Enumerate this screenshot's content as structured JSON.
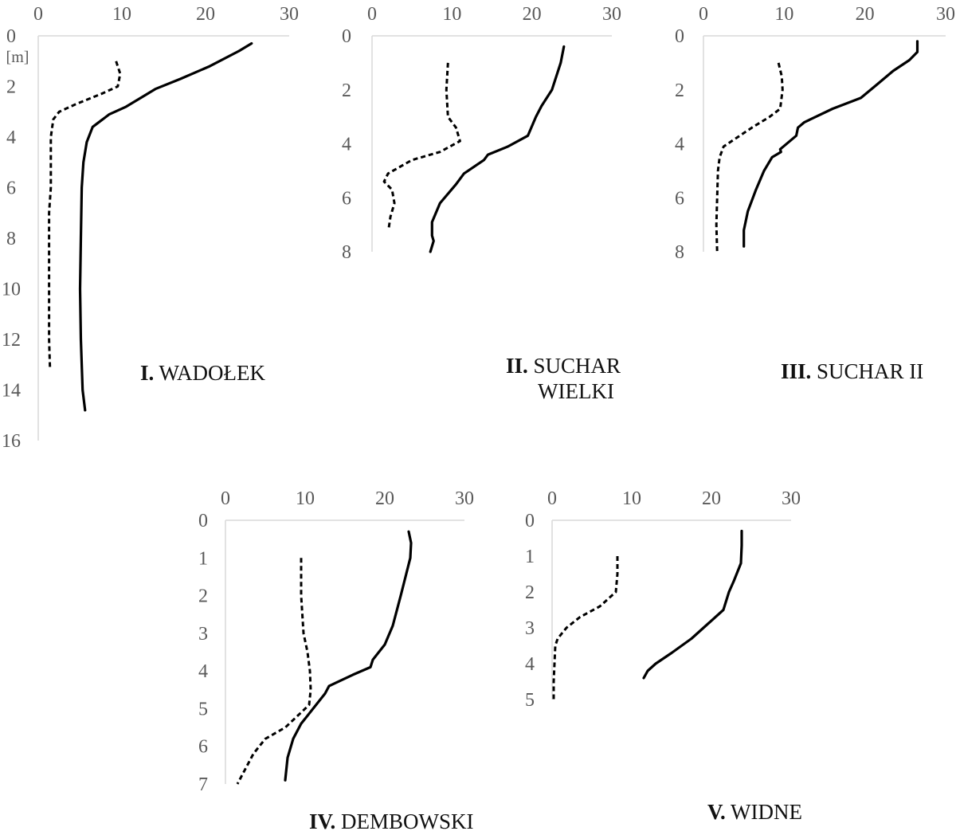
{
  "chart_data": [
    {
      "type": "line",
      "title_num": "I.",
      "title_name": [
        "WADOŁEK"
      ],
      "unit_label": "[m]",
      "xlim": [
        0,
        30
      ],
      "ylim": [
        0,
        16
      ],
      "y_inverted": true,
      "x_ticks": [
        "0",
        "10",
        "20",
        "30"
      ],
      "y_ticks": [
        "0",
        "2",
        "4",
        "6",
        "8",
        "10",
        "12",
        "14",
        "16"
      ],
      "grid": false,
      "series": [
        {
          "style": "solid",
          "points": [
            [
              25.5,
              0.3
            ],
            [
              24,
              0.6
            ],
            [
              20.5,
              1.2
            ],
            [
              17,
              1.7
            ],
            [
              14,
              2.1
            ],
            [
              12.5,
              2.4
            ],
            [
              10.5,
              2.8
            ],
            [
              8.5,
              3.1
            ],
            [
              6.5,
              3.6
            ],
            [
              5.8,
              4.2
            ],
            [
              5.4,
              5
            ],
            [
              5.2,
              6
            ],
            [
              5.1,
              8
            ],
            [
              5,
              10
            ],
            [
              5.1,
              12
            ],
            [
              5.3,
              14
            ],
            [
              5.6,
              14.8
            ]
          ]
        },
        {
          "style": "dashed",
          "points": [
            [
              9.3,
              1
            ],
            [
              9.8,
              1.5
            ],
            [
              9.5,
              2
            ],
            [
              7.5,
              2.3
            ],
            [
              4.5,
              2.7
            ],
            [
              2.5,
              3
            ],
            [
              1.8,
              3.3
            ],
            [
              1.5,
              4
            ],
            [
              1.5,
              6
            ],
            [
              1.3,
              7
            ],
            [
              1.3,
              8
            ],
            [
              1.3,
              10
            ],
            [
              1.3,
              12
            ],
            [
              1.4,
              13.1
            ]
          ]
        }
      ]
    },
    {
      "type": "line",
      "title_num": "II.",
      "title_name": [
        "SUCHAR",
        "WIELKI"
      ],
      "xlim": [
        0,
        30
      ],
      "ylim": [
        0,
        8
      ],
      "y_inverted": true,
      "x_ticks": [
        "0",
        "10",
        "20",
        "30"
      ],
      "y_ticks": [
        "0",
        "2",
        "4",
        "6",
        "8"
      ],
      "grid": false,
      "series": [
        {
          "style": "solid",
          "points": [
            [
              24,
              0.4
            ],
            [
              23.6,
              1
            ],
            [
              22.5,
              2
            ],
            [
              21.2,
              2.6
            ],
            [
              20.5,
              3
            ],
            [
              19.5,
              3.7
            ],
            [
              17,
              4.1
            ],
            [
              14.5,
              4.4
            ],
            [
              14,
              4.6
            ],
            [
              12,
              5
            ],
            [
              11.5,
              5.1
            ],
            [
              10.5,
              5.5
            ],
            [
              8.5,
              6.2
            ],
            [
              7.5,
              6.9
            ],
            [
              7.5,
              7.4
            ],
            [
              7.7,
              7.6
            ],
            [
              7.3,
              8
            ]
          ]
        },
        {
          "style": "dashed",
          "points": [
            [
              9.5,
              1
            ],
            [
              9.3,
              2
            ],
            [
              9.5,
              3
            ],
            [
              10.5,
              3.4
            ],
            [
              11,
              3.9
            ],
            [
              8.5,
              4.3
            ],
            [
              5,
              4.6
            ],
            [
              2,
              5.1
            ],
            [
              1.5,
              5.4
            ],
            [
              2.5,
              5.7
            ],
            [
              2.8,
              6.2
            ],
            [
              2.3,
              6.7
            ],
            [
              2.1,
              7.1
            ]
          ]
        }
      ]
    },
    {
      "type": "line",
      "title_num": "III.",
      "title_name": [
        "SUCHAR II"
      ],
      "xlim": [
        0,
        30
      ],
      "ylim": [
        0,
        8
      ],
      "y_inverted": true,
      "x_ticks": [
        "0",
        "10",
        "20",
        "30"
      ],
      "y_ticks": [
        "0",
        "2",
        "4",
        "6",
        "8"
      ],
      "grid": false,
      "series": [
        {
          "style": "solid",
          "points": [
            [
              26.5,
              0.2
            ],
            [
              26.5,
              0.6
            ],
            [
              25.5,
              0.9
            ],
            [
              23.5,
              1.3
            ],
            [
              21.5,
              1.8
            ],
            [
              19.5,
              2.3
            ],
            [
              16,
              2.7
            ],
            [
              12.5,
              3.2
            ],
            [
              11.7,
              3.4
            ],
            [
              11.5,
              3.7
            ],
            [
              10.5,
              3.95
            ],
            [
              9.5,
              4.2
            ],
            [
              9.6,
              4.3
            ],
            [
              8.5,
              4.5
            ],
            [
              7.5,
              5
            ],
            [
              6.5,
              5.7
            ],
            [
              5.5,
              6.5
            ],
            [
              5,
              7.2
            ],
            [
              5,
              7.8
            ]
          ]
        },
        {
          "style": "dashed",
          "points": [
            [
              9.3,
              1
            ],
            [
              9.7,
              1.5
            ],
            [
              9.8,
              2
            ],
            [
              9.5,
              2.7
            ],
            [
              8.2,
              3
            ],
            [
              6,
              3.4
            ],
            [
              4,
              3.8
            ],
            [
              2.5,
              4.1
            ],
            [
              2,
              4.5
            ],
            [
              1.8,
              5
            ],
            [
              1.7,
              6
            ],
            [
              1.6,
              7
            ],
            [
              1.7,
              8
            ]
          ]
        }
      ]
    },
    {
      "type": "line",
      "title_num": "IV.",
      "title_name": [
        "DEMBOWSKI"
      ],
      "xlim": [
        0,
        30
      ],
      "ylim": [
        0,
        7
      ],
      "y_inverted": true,
      "x_ticks": [
        "0",
        "10",
        "20",
        "30"
      ],
      "y_ticks": [
        "0",
        "1",
        "2",
        "3",
        "4",
        "5",
        "6",
        "7"
      ],
      "grid": false,
      "series": [
        {
          "style": "solid",
          "points": [
            [
              23,
              0.3
            ],
            [
              23.3,
              0.6
            ],
            [
              23.2,
              1
            ],
            [
              22,
              2
            ],
            [
              21,
              2.8
            ],
            [
              20,
              3.3
            ],
            [
              18.5,
              3.7
            ],
            [
              18.2,
              3.9
            ],
            [
              16,
              4.1
            ],
            [
              14,
              4.3
            ],
            [
              13,
              4.4
            ],
            [
              12.5,
              4.6
            ],
            [
              11,
              5
            ],
            [
              9.5,
              5.4
            ],
            [
              8.5,
              5.8
            ],
            [
              7.8,
              6.3
            ],
            [
              7.5,
              6.9
            ]
          ]
        },
        {
          "style": "dashed",
          "points": [
            [
              9.5,
              1
            ],
            [
              9.5,
              2
            ],
            [
              9.8,
              3
            ],
            [
              10.3,
              3.5
            ],
            [
              10.6,
              4
            ],
            [
              10.7,
              4.5
            ],
            [
              10.5,
              4.9
            ],
            [
              9.5,
              5.1
            ],
            [
              7.5,
              5.5
            ],
            [
              5,
              5.8
            ],
            [
              3.5,
              6.2
            ],
            [
              2.5,
              6.6
            ],
            [
              1.5,
              7
            ]
          ]
        }
      ]
    },
    {
      "type": "line",
      "title_num": "V.",
      "title_name": [
        "WIDNE"
      ],
      "xlim": [
        0,
        30
      ],
      "ylim": [
        0,
        5
      ],
      "y_inverted": true,
      "x_ticks": [
        "0",
        "10",
        "20",
        "30"
      ],
      "y_ticks": [
        "0",
        "1",
        "2",
        "3",
        "4",
        "5"
      ],
      "grid": false,
      "series": [
        {
          "style": "solid",
          "points": [
            [
              23.8,
              0.3
            ],
            [
              23.8,
              0.7
            ],
            [
              23.7,
              1.2
            ],
            [
              22.8,
              1.7
            ],
            [
              22.2,
              2
            ],
            [
              21.5,
              2.5
            ],
            [
              19.5,
              2.9
            ],
            [
              17.5,
              3.3
            ],
            [
              15,
              3.7
            ],
            [
              13,
              4
            ],
            [
              12,
              4.2
            ],
            [
              11.5,
              4.4
            ]
          ]
        },
        {
          "style": "dashed",
          "points": [
            [
              8.2,
              1
            ],
            [
              8.2,
              1.5
            ],
            [
              8,
              2
            ],
            [
              6,
              2.4
            ],
            [
              3.5,
              2.7
            ],
            [
              1.8,
              3
            ],
            [
              0.7,
              3.3
            ],
            [
              0.4,
              3.5
            ],
            [
              0.3,
              4
            ],
            [
              0.2,
              4.5
            ],
            [
              0.2,
              5
            ]
          ]
        }
      ]
    }
  ]
}
